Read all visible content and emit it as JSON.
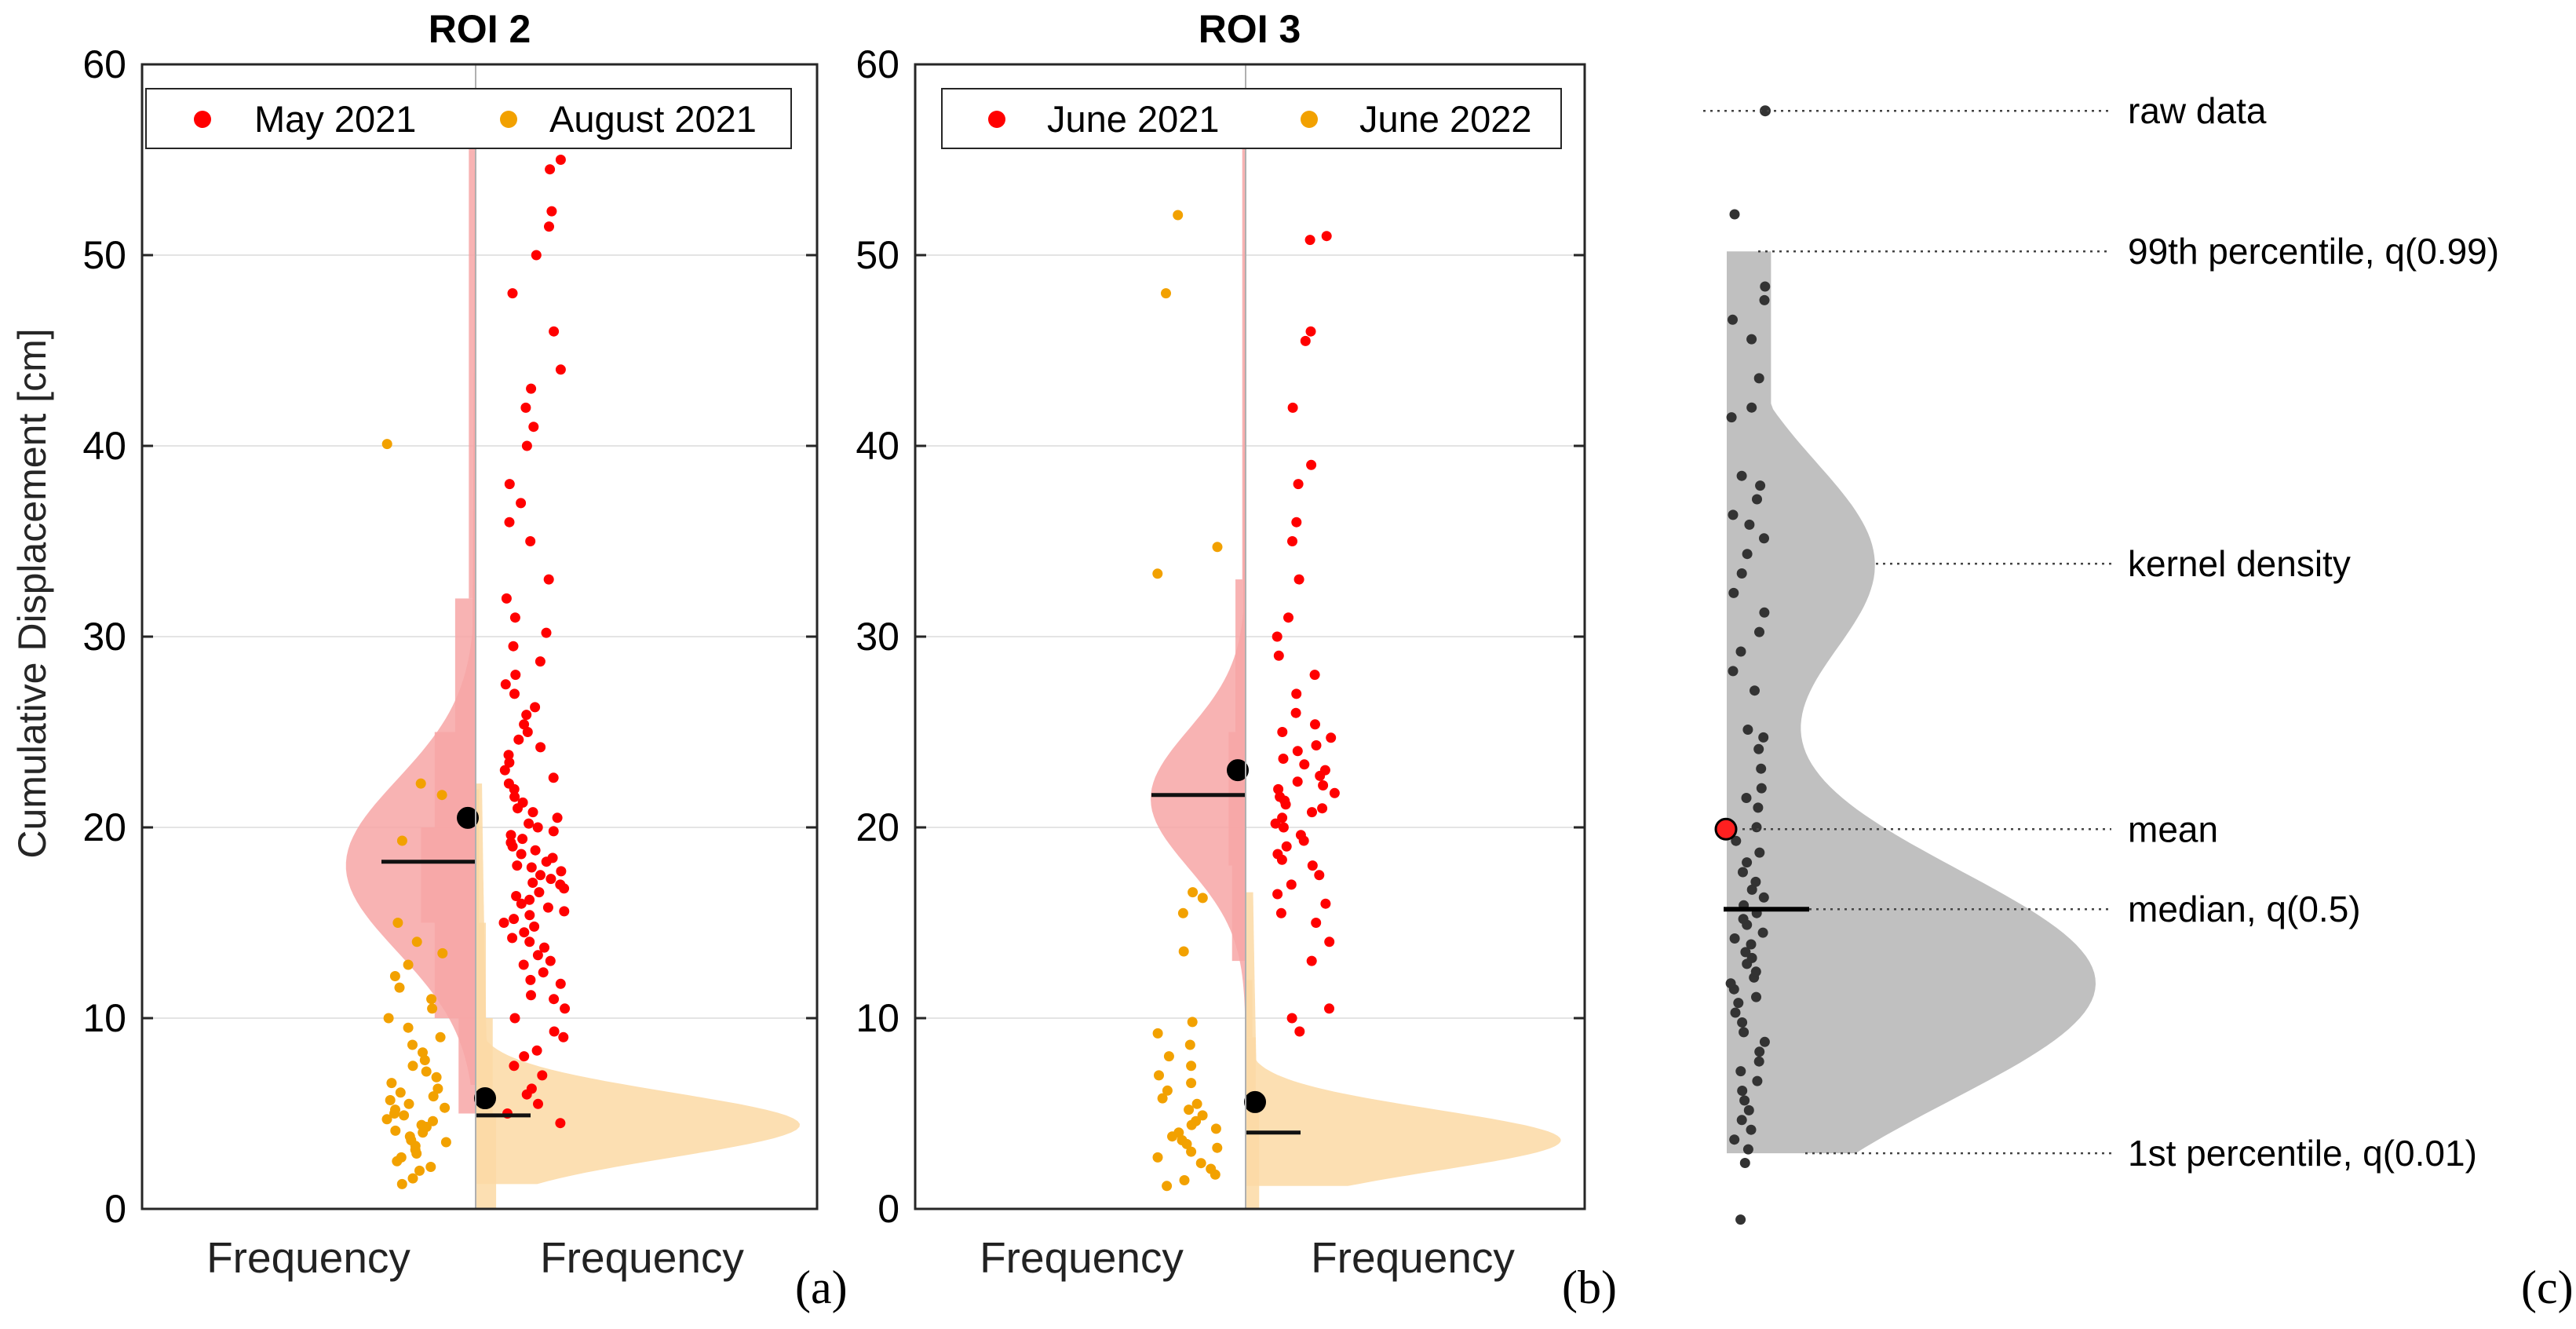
{
  "y_axis_label": "Cumulative Displacement [cm]",
  "chart_data": [
    {
      "panel": "(a)",
      "type": "raincloud",
      "title": "ROI 2",
      "ylabel": "Cumulative Displacement [cm]",
      "ylim": [
        0,
        60
      ],
      "yticks": [
        0,
        10,
        20,
        30,
        40,
        50,
        60
      ],
      "x_labels": [
        "Frequency",
        "Frequency"
      ],
      "legend": [
        "May 2021",
        "August 2021"
      ],
      "legend_position": "top",
      "grid": true,
      "series": [
        {
          "name": "May 2021",
          "side": "left",
          "color": "#ff0000",
          "fill": "#f7a6a6",
          "mean": 20.5,
          "median": 18.2,
          "q01": 6.5,
          "q99": 54.5,
          "kde_peak": 18.0,
          "kde_width": 0.38,
          "kde_sd": 4.5,
          "hist": [
            [
              5,
              10,
              0.05
            ],
            [
              10,
              15,
              0.12
            ],
            [
              15,
              20,
              0.16
            ],
            [
              20,
              25,
              0.12
            ],
            [
              25,
              32,
              0.06
            ],
            [
              32,
              56,
              0.02
            ]
          ],
          "points": [
            4.5,
            5,
            5.5,
            6,
            6.3,
            7,
            7.5,
            8,
            8.3,
            9,
            9.3,
            10,
            10.5,
            11,
            11.2,
            11.8,
            12,
            12.4,
            12.8,
            13,
            13.3,
            13.7,
            14,
            14.2,
            14.5,
            14.8,
            15,
            15.2,
            15.4,
            15.6,
            15.8,
            16,
            16.2,
            16.4,
            16.6,
            16.8,
            17,
            17.1,
            17.3,
            17.5,
            17.7,
            17.9,
            18,
            18.2,
            18.4,
            18.6,
            18.8,
            19,
            19.2,
            19.4,
            19.6,
            19.8,
            20,
            20.2,
            20.5,
            20.8,
            21,
            21.3,
            21.6,
            22,
            22.3,
            22.6,
            23,
            23.4,
            23.8,
            24.2,
            24.6,
            25,
            25.4,
            25.9,
            26.3,
            27,
            27.5,
            28,
            28.7,
            29.5,
            30.2,
            31,
            32,
            33,
            35,
            36,
            37,
            38,
            40,
            41,
            42,
            43,
            44,
            46,
            48,
            50,
            51.5,
            52.3,
            54.5,
            55
          ]
        },
        {
          "name": "August 2021",
          "side": "right",
          "color": "#f2a100",
          "fill": "#fbd9a5",
          "mean": 5.8,
          "median": 4.9,
          "q01": 1.3,
          "q99": 22.3,
          "kde_peak": 4.4,
          "kde_width": 0.95,
          "kde_sd": 1.7,
          "hist": [
            [
              0,
              5,
              0.06
            ],
            [
              5,
              10,
              0.05
            ],
            [
              10,
              15,
              0.03
            ],
            [
              15,
              22,
              0.01
            ]
          ],
          "points": [
            1.3,
            1.6,
            2,
            2.2,
            2.5,
            2.7,
            2.9,
            3.1,
            3.3,
            3.5,
            3.6,
            3.8,
            4,
            4.1,
            4.3,
            4.4,
            4.6,
            4.7,
            4.9,
            5,
            5.2,
            5.3,
            5.5,
            5.7,
            5.9,
            6.1,
            6.3,
            6.6,
            6.9,
            7.2,
            7.5,
            7.8,
            8.2,
            8.6,
            9,
            9.5,
            10,
            10.5,
            11,
            11.6,
            12.2,
            12.8,
            13.4,
            14,
            15,
            19.3,
            21.7,
            22.3,
            40.1
          ]
        }
      ]
    },
    {
      "panel": "(b)",
      "type": "raincloud",
      "title": "ROI 3",
      "ylim": [
        0,
        60
      ],
      "yticks": [
        0,
        10,
        20,
        30,
        40,
        50,
        60
      ],
      "x_labels": [
        "Frequency",
        "Frequency"
      ],
      "legend": [
        "June 2021",
        "June 2022"
      ],
      "legend_position": "top",
      "grid": true,
      "series": [
        {
          "name": "June 2021",
          "side": "left",
          "color": "#ff0000",
          "fill": "#f7a6a6",
          "mean": 23.0,
          "median": 21.7,
          "q01": 9.3,
          "q99": 50.8,
          "kde_peak": 21.5,
          "kde_width": 0.28,
          "kde_sd": 3.6,
          "hist": [
            [
              13,
              18,
              0.04
            ],
            [
              18,
              25,
              0.05
            ],
            [
              25,
              33,
              0.03
            ],
            [
              33,
              56,
              0.01
            ]
          ],
          "points": [
            9.3,
            10,
            10.5,
            13,
            14,
            15,
            15.5,
            16,
            16.5,
            17,
            17.5,
            18,
            18.3,
            18.6,
            19,
            19.3,
            19.6,
            20,
            20.2,
            20.5,
            20.8,
            21,
            21.2,
            21.4,
            21.6,
            21.8,
            22,
            22.2,
            22.4,
            22.7,
            23,
            23.3,
            23.6,
            24,
            24.3,
            24.7,
            25,
            25.4,
            26,
            27,
            28,
            29,
            30,
            31,
            33,
            35,
            36,
            38,
            39,
            42,
            45.5,
            46,
            50.8,
            51
          ]
        },
        {
          "name": "June 2022",
          "side": "right",
          "color": "#f2a100",
          "fill": "#fbd9a5",
          "mean": 5.6,
          "median": 4.0,
          "q01": 1.2,
          "q99": 16.6,
          "kde_peak": 3.6,
          "kde_width": 0.93,
          "kde_sd": 1.6,
          "hist": [
            [
              0,
              5,
              0.04
            ],
            [
              5,
              9,
              0.03
            ],
            [
              9,
              12,
              0.02
            ]
          ],
          "points": [
            1.2,
            1.5,
            1.8,
            2.1,
            2.4,
            2.7,
            3,
            3.2,
            3.4,
            3.6,
            3.8,
            4,
            4.2,
            4.4,
            4.6,
            4.9,
            5.2,
            5.5,
            5.8,
            6.2,
            6.6,
            7,
            7.5,
            8,
            8.6,
            9.2,
            9.8,
            13.5,
            15.5,
            16.3,
            16.6,
            33.3,
            34.7,
            48,
            52.1
          ]
        }
      ]
    },
    {
      "panel": "(c)",
      "type": "raincloud-schematic",
      "annotations": [
        "raw data",
        "99th percentile, q(0.99)",
        "kernel density",
        "mean",
        "median, q(0.5)",
        "1st percentile, q(0.01)"
      ],
      "mean": 20.9,
      "median": 16.8,
      "q01": 4.3,
      "q99": 50.5,
      "raw_data_example": 57.7,
      "fill": "#c0c0c0",
      "point_color": "#333333",
      "points": [
        0.9,
        3.8,
        4.5,
        5,
        5.5,
        6,
        6.5,
        7,
        7.5,
        8,
        8.5,
        9,
        9.5,
        10,
        10.5,
        11,
        11.5,
        12,
        12.3,
        12.7,
        13,
        13.3,
        13.6,
        14,
        14.3,
        14.6,
        15,
        15.3,
        15.6,
        16,
        16.3,
        16.6,
        17,
        17.4,
        17.8,
        18.2,
        18.7,
        19.2,
        19.7,
        20.3,
        21,
        22,
        22.5,
        23,
        24,
        25,
        25.6,
        26,
        28,
        29,
        30,
        31,
        32,
        33,
        34,
        35,
        35.8,
        36.5,
        37,
        37.8,
        38.5,
        39,
        42,
        42.5,
        44,
        46,
        47,
        48,
        48.7,
        52.4
      ]
    }
  ],
  "panel_labels": [
    "(a)",
    "(b)",
    "(c)"
  ]
}
